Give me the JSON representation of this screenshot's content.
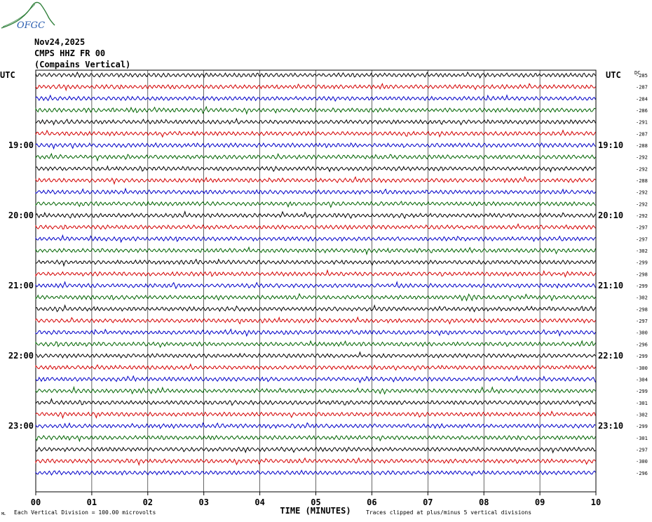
{
  "logo": {
    "text": "OFGC",
    "color": "#2f7f3a",
    "text_color": "#2a5db0"
  },
  "header": {
    "date": "Nov24,2025",
    "station": "CMPS HHZ FR 00",
    "location": "(Compains Vertical)"
  },
  "colors": {
    "black": "#000000",
    "red": "#d40000",
    "blue": "#0000c8",
    "green": "#006400"
  },
  "chart_data": {
    "type": "line",
    "title": "",
    "xlabel": "TIME (MINUTES)",
    "ylabel": "",
    "xlim": [
      0,
      10
    ],
    "x_ticks": [
      "00",
      "01",
      "02",
      "03",
      "04",
      "05",
      "06",
      "07",
      "08",
      "09",
      "10"
    ],
    "left_axis_label": "UTC",
    "right_axis_label": "UTC",
    "right_column_label": "DC",
    "left_hour_labels": [
      {
        "row": 6,
        "label": "19:00"
      },
      {
        "row": 12,
        "label": "20:00"
      },
      {
        "row": 18,
        "label": "21:00"
      },
      {
        "row": 24,
        "label": "22:00"
      },
      {
        "row": 30,
        "label": "23:00"
      }
    ],
    "right_hour_labels": [
      {
        "row": 6,
        "label": "19:10"
      },
      {
        "row": 12,
        "label": "20:10"
      },
      {
        "row": 18,
        "label": "21:10"
      },
      {
        "row": 24,
        "label": "22:10"
      },
      {
        "row": 30,
        "label": "23:10"
      }
    ],
    "trace_color_cycle": [
      "black",
      "red",
      "blue",
      "green"
    ],
    "trace_minutes_per_line": 10,
    "dc_offsets": [
      "-285",
      "-287",
      "-284",
      "-286",
      "-291",
      "-287",
      "-288",
      "-292",
      "-292",
      "-288",
      "-292",
      "-292",
      "-292",
      "-297",
      "-297",
      "-302",
      "-299",
      "-298",
      "-299",
      "-302",
      "-298",
      "-297",
      "-300",
      "-296",
      "-299",
      "-300",
      "-304",
      "-299",
      "-301",
      "-302",
      "-299",
      "-301",
      "-297",
      "-300",
      "-296"
    ],
    "footer_left_mark": "ML",
    "footer_scale": "Each Vertical Division =  100.00 microvolts",
    "footer_clip": "Traces clipped at plus/minus 5 vertical divisions"
  }
}
